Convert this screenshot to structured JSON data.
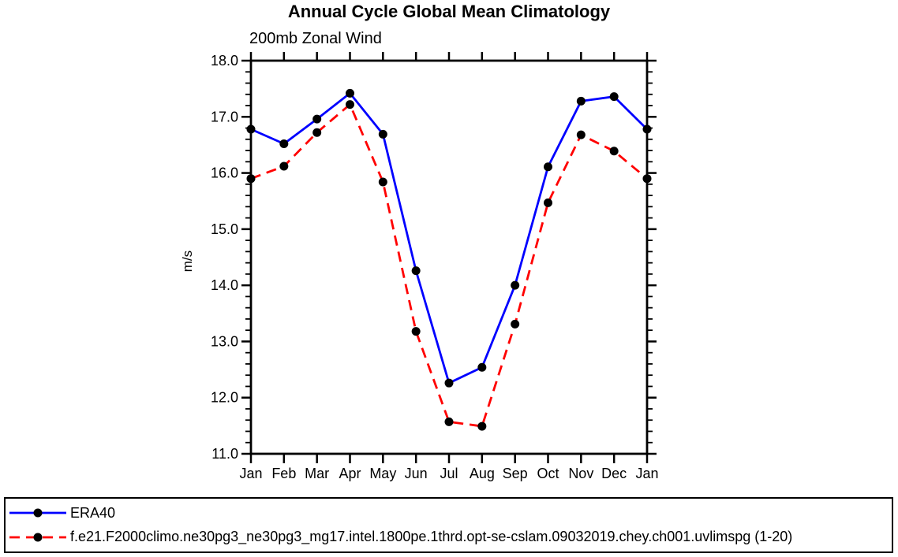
{
  "chart_data": {
    "type": "line",
    "title": "Annual Cycle Global Mean Climatology",
    "subtitle": "200mb Zonal Wind",
    "xlabel": "",
    "ylabel": "m/s",
    "ylim": [
      11.0,
      18.0
    ],
    "y_major_step": 1.0,
    "y_minor_step": 0.2,
    "grid": false,
    "legend_position": "bottom-outside-box",
    "categories": [
      "Jan",
      "Feb",
      "Mar",
      "Apr",
      "May",
      "Jun",
      "Jul",
      "Aug",
      "Sep",
      "Oct",
      "Nov",
      "Dec",
      "Jan"
    ],
    "series": [
      {
        "name": "ERA40",
        "line_color": "#0000ff",
        "line_style": "solid",
        "marker": "filled-circle",
        "marker_color": "#000000",
        "values": [
          16.78,
          16.52,
          16.96,
          17.42,
          16.69,
          14.26,
          12.26,
          12.54,
          14.0,
          16.11,
          17.28,
          17.36,
          16.78
        ]
      },
      {
        "name": "f.e21.F2000climo.ne30pg3_ne30pg3_mg17.intel.1800pe.1thrd.opt-se-cslam.09032019.chey.ch001.uvlimspg (1-20)",
        "line_color": "#ff0000",
        "line_style": "dashed",
        "marker": "filled-circle",
        "marker_color": "#000000",
        "values": [
          15.9,
          16.12,
          16.72,
          17.22,
          15.84,
          13.18,
          11.57,
          11.49,
          13.31,
          15.47,
          16.68,
          16.39,
          15.9
        ]
      }
    ],
    "axis_color": "#000000",
    "text_color": "#000000"
  }
}
